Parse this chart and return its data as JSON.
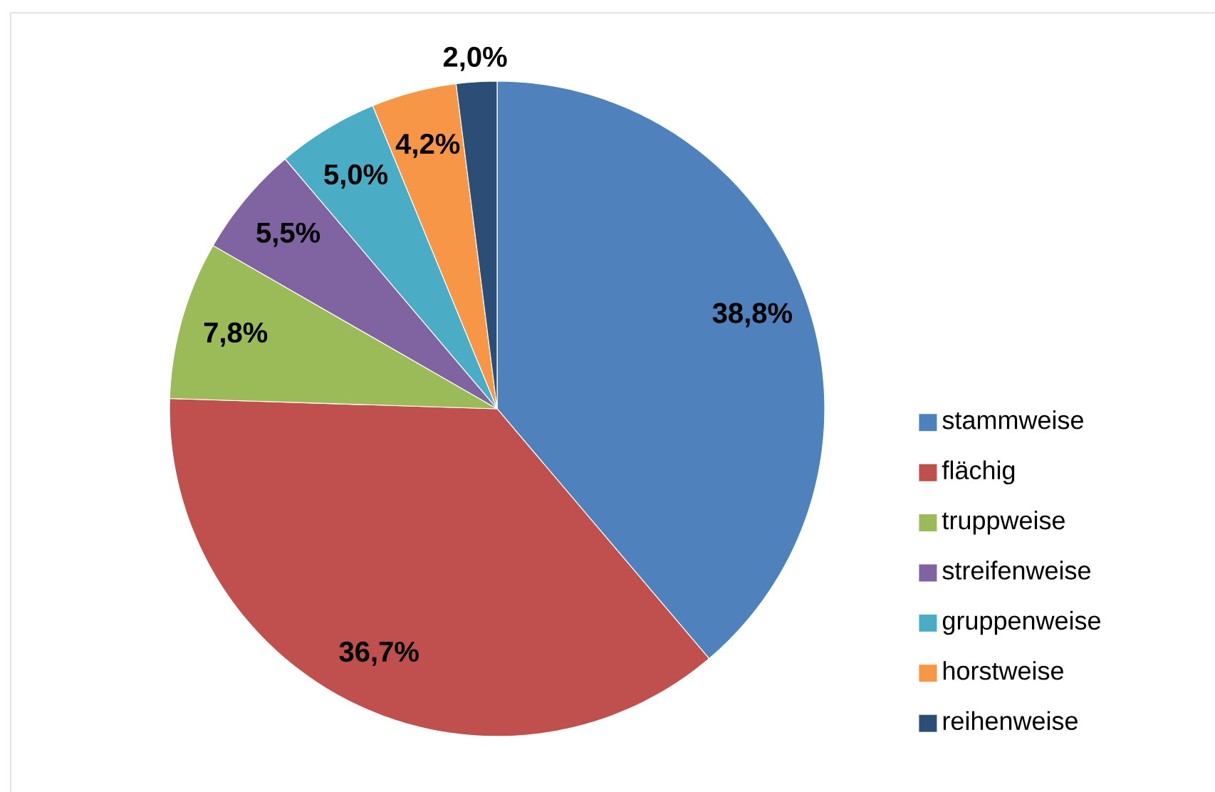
{
  "chart_data": {
    "type": "pie",
    "categories": [
      "stammweise",
      "flächig",
      "truppweise",
      "streifenweise",
      "gruppenweise",
      "horstweise",
      "reihenweise"
    ],
    "values": [
      38.8,
      36.7,
      7.8,
      5.5,
      5.0,
      4.2,
      2.0
    ],
    "colors": [
      "#4f81bd",
      "#c0504d",
      "#9bbb59",
      "#8064a2",
      "#4bacc6",
      "#f79646",
      "#2c4d75"
    ],
    "value_labels": [
      "38,8%",
      "36,7%",
      "7,8%",
      "5,5%",
      "5,0%",
      "4,2%",
      "2,0%"
    ],
    "legend": "right"
  }
}
